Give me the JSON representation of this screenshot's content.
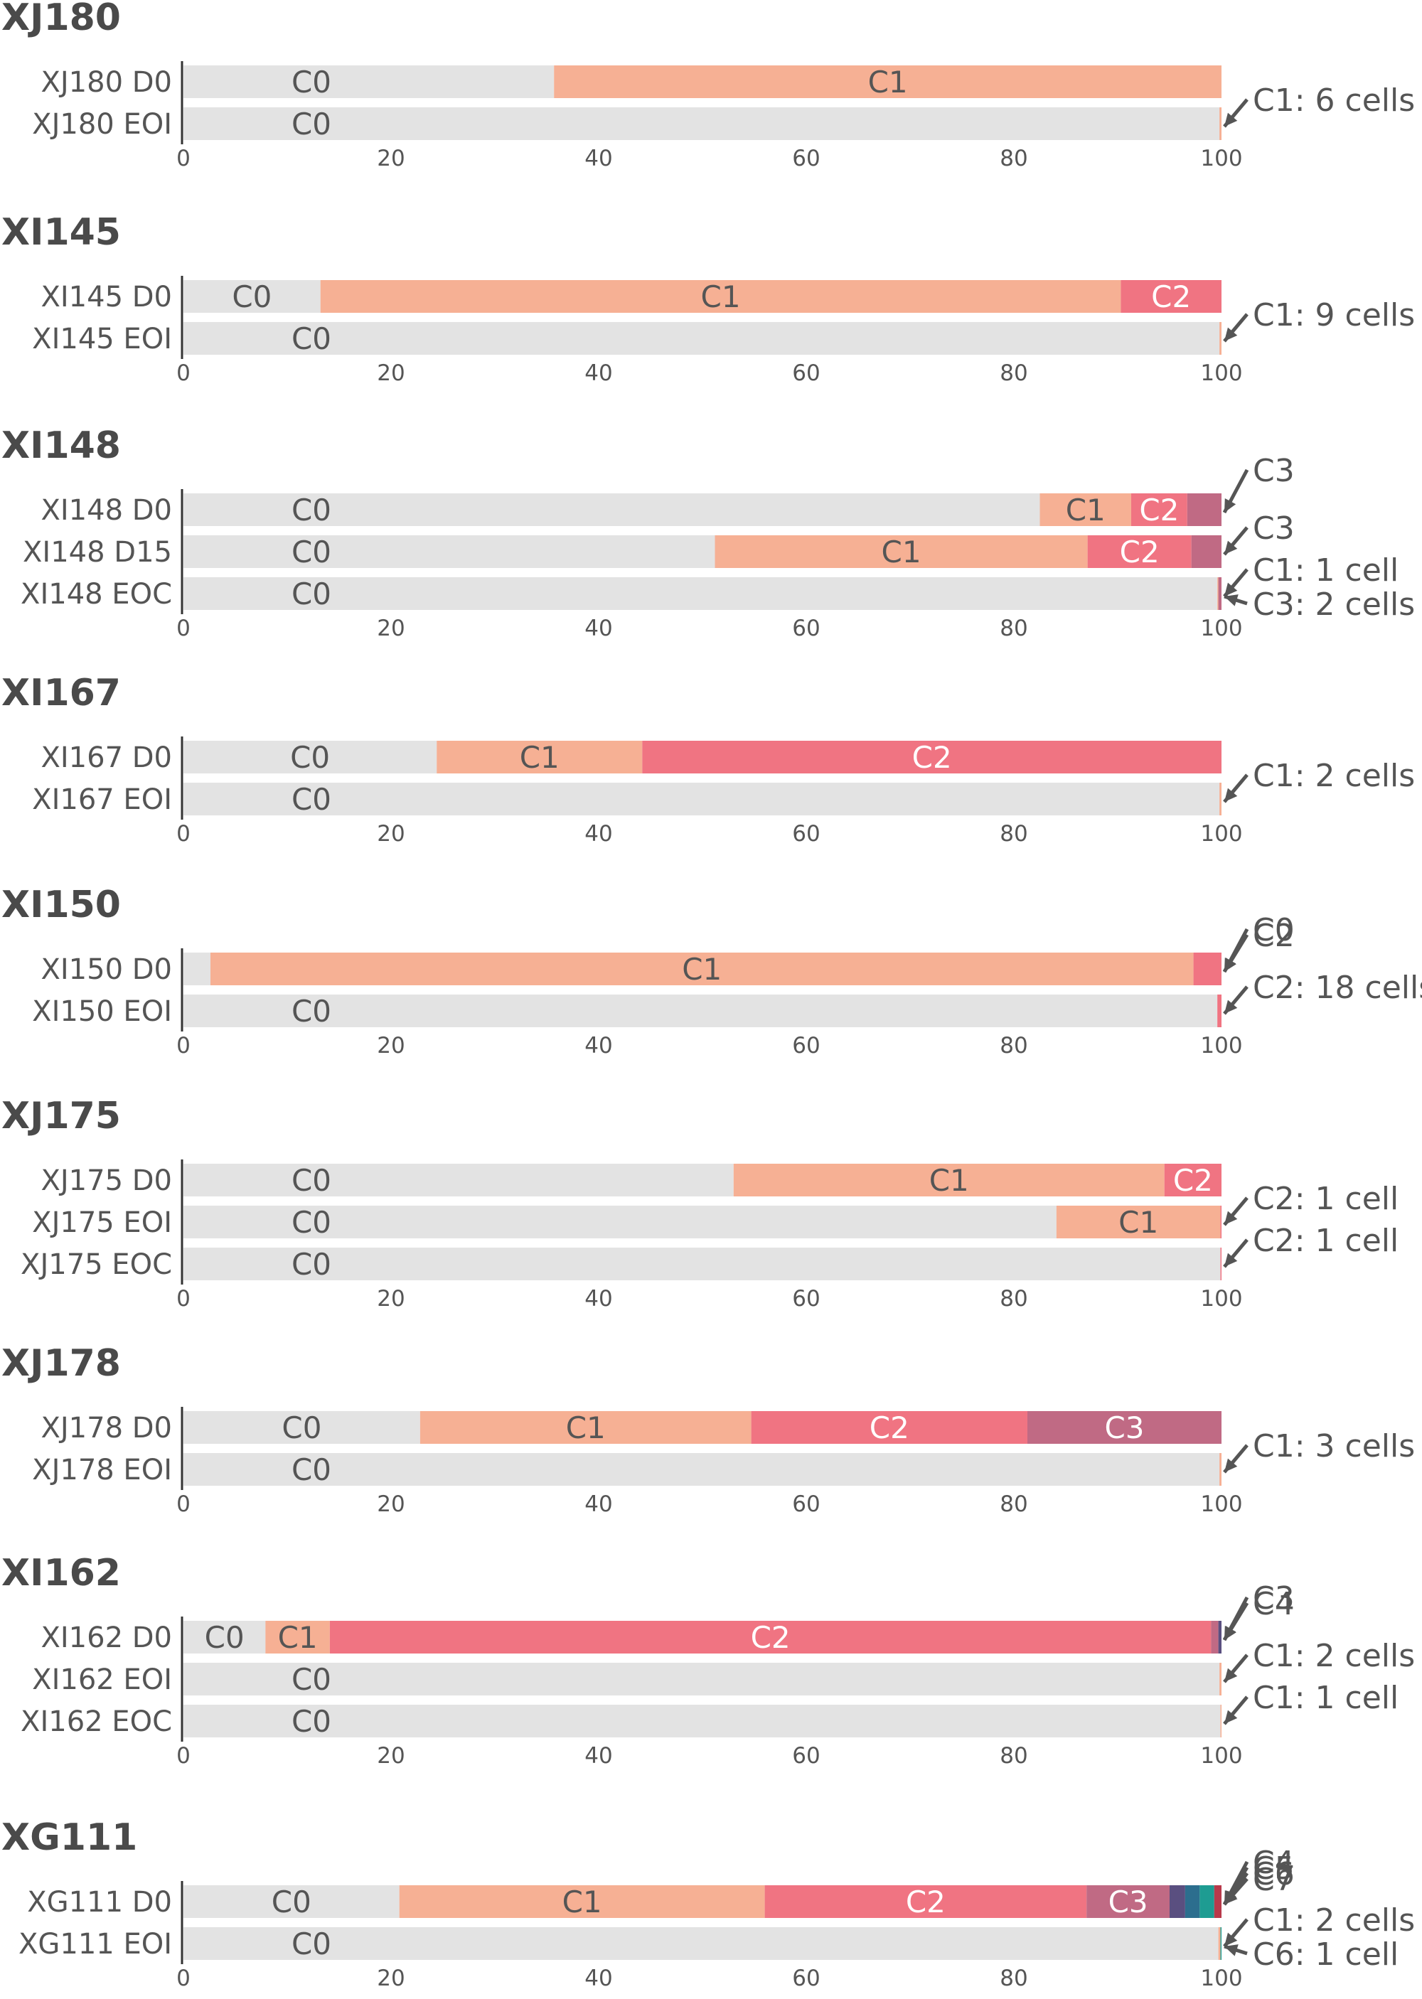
{
  "colors": {
    "C0": "#e3e3e3",
    "C1": "#f6b094",
    "C2": "#f07482",
    "C3": "#c06a84",
    "C4": "#5a4f80",
    "C5": "#2c6e8e",
    "C6": "#1e9c92",
    "C7": "#b8394a"
  },
  "chart_data": {
    "type": "bar",
    "orientation": "horizontal-stacked",
    "x_range": [
      0,
      100
    ],
    "x_ticks": [
      "0",
      "20",
      "40",
      "60",
      "80",
      "100"
    ],
    "panels": [
      {
        "title": "XJ180",
        "rows": [
          {
            "label": "XJ180 D0",
            "segments": [
              {
                "name": "C0",
                "value": 35.7,
                "show": true
              },
              {
                "name": "C1",
                "value": 64.3,
                "show": true
              }
            ]
          },
          {
            "label": "XJ180 EOI",
            "segments": [
              {
                "name": "C0",
                "value": 99.8,
                "show": true
              },
              {
                "name": "C1",
                "value": 0.2,
                "show": false
              }
            ]
          }
        ],
        "annotations": [
          {
            "text": "C1: 6 cells",
            "row": 1
          }
        ]
      },
      {
        "title": "XI145",
        "rows": [
          {
            "label": "XI145 D0",
            "segments": [
              {
                "name": "C0",
                "value": 13.2,
                "show": true
              },
              {
                "name": "C1",
                "value": 77.1,
                "show": true
              },
              {
                "name": "C2",
                "value": 9.7,
                "show": true
              }
            ]
          },
          {
            "label": "XI145 EOI",
            "segments": [
              {
                "name": "C0",
                "value": 99.8,
                "show": true
              },
              {
                "name": "C1",
                "value": 0.2,
                "show": false
              }
            ]
          }
        ],
        "annotations": [
          {
            "text": "C1: 9 cells",
            "row": 1
          }
        ]
      },
      {
        "title": "XI148",
        "rows": [
          {
            "label": "XI148 D0",
            "segments": [
              {
                "name": "C0",
                "value": 82.5,
                "show": true
              },
              {
                "name": "C1",
                "value": 8.8,
                "show": true
              },
              {
                "name": "C2",
                "value": 5.4,
                "show": true
              },
              {
                "name": "C3",
                "value": 3.3,
                "show": false
              }
            ]
          },
          {
            "label": "XI148 D15",
            "segments": [
              {
                "name": "C0",
                "value": 51.2,
                "show": true
              },
              {
                "name": "C1",
                "value": 35.9,
                "show": true
              },
              {
                "name": "C2",
                "value": 10.0,
                "show": true
              },
              {
                "name": "C3",
                "value": 2.9,
                "show": false
              }
            ]
          },
          {
            "label": "XI148 EOC",
            "segments": [
              {
                "name": "C0",
                "value": 99.6,
                "show": true
              },
              {
                "name": "C1",
                "value": 0.1,
                "show": false
              },
              {
                "name": "C3",
                "value": 0.3,
                "show": false
              }
            ]
          }
        ],
        "annotations": [
          {
            "text": "C3",
            "row": 0
          },
          {
            "text": "C3",
            "row": 1
          },
          {
            "text": "C1: 1 cell",
            "row": 2
          },
          {
            "text": "C3: 2 cells",
            "row": 2
          }
        ]
      },
      {
        "title": "XI167",
        "rows": [
          {
            "label": "XI167 D0",
            "segments": [
              {
                "name": "C0",
                "value": 24.4,
                "show": true
              },
              {
                "name": "C1",
                "value": 19.8,
                "show": true
              },
              {
                "name": "C2",
                "value": 55.8,
                "show": true
              }
            ]
          },
          {
            "label": "XI167 EOI",
            "segments": [
              {
                "name": "C0",
                "value": 99.8,
                "show": true
              },
              {
                "name": "C1",
                "value": 0.2,
                "show": false
              }
            ]
          }
        ],
        "annotations": [
          {
            "text": "C1: 2 cells",
            "row": 1
          }
        ]
      },
      {
        "title": "XI150",
        "rows": [
          {
            "label": "XI150 D0",
            "segments": [
              {
                "name": "C0",
                "value": 2.6,
                "show": false
              },
              {
                "name": "C1",
                "value": 94.7,
                "show": true
              },
              {
                "name": "C2",
                "value": 2.7,
                "show": false
              }
            ]
          },
          {
            "label": "XI150 EOI",
            "segments": [
              {
                "name": "C0",
                "value": 99.6,
                "show": true
              },
              {
                "name": "C2",
                "value": 0.4,
                "show": false
              }
            ]
          }
        ],
        "annotations": [
          {
            "text": "C0",
            "row": 0
          },
          {
            "text": "C2",
            "row": 0
          },
          {
            "text": "C2: 18 cells",
            "row": 1
          }
        ]
      },
      {
        "title": "XJ175",
        "rows": [
          {
            "label": "XJ175 D0",
            "segments": [
              {
                "name": "C0",
                "value": 53.0,
                "show": true
              },
              {
                "name": "C1",
                "value": 41.5,
                "show": true
              },
              {
                "name": "C2",
                "value": 5.5,
                "show": true
              }
            ]
          },
          {
            "label": "XJ175 EOI",
            "segments": [
              {
                "name": "C0",
                "value": 84.1,
                "show": true
              },
              {
                "name": "C1",
                "value": 15.8,
                "show": true
              },
              {
                "name": "C2",
                "value": 0.1,
                "show": false
              }
            ]
          },
          {
            "label": "XJ175 EOC",
            "segments": [
              {
                "name": "C0",
                "value": 99.9,
                "show": true
              },
              {
                "name": "C2",
                "value": 0.1,
                "show": false
              }
            ]
          }
        ],
        "annotations": [
          {
            "text": "C2: 1 cell",
            "row": 1
          },
          {
            "text": "C2: 1 cell",
            "row": 2
          }
        ]
      },
      {
        "title": "XJ178",
        "rows": [
          {
            "label": "XJ178 D0",
            "segments": [
              {
                "name": "C0",
                "value": 22.8,
                "show": true
              },
              {
                "name": "C1",
                "value": 31.9,
                "show": true
              },
              {
                "name": "C2",
                "value": 26.6,
                "show": true
              },
              {
                "name": "C3",
                "value": 18.7,
                "show": true
              }
            ]
          },
          {
            "label": "XJ178 EOI",
            "segments": [
              {
                "name": "C0",
                "value": 99.8,
                "show": true
              },
              {
                "name": "C1",
                "value": 0.2,
                "show": false
              }
            ]
          }
        ],
        "annotations": [
          {
            "text": "C1: 3 cells",
            "row": 1
          }
        ]
      },
      {
        "title": "XI162",
        "rows": [
          {
            "label": "XI162 D0",
            "segments": [
              {
                "name": "C0",
                "value": 7.9,
                "show": true
              },
              {
                "name": "C1",
                "value": 6.2,
                "show": true
              },
              {
                "name": "C2",
                "value": 84.9,
                "show": true
              },
              {
                "name": "C3",
                "value": 0.7,
                "show": false
              },
              {
                "name": "C4",
                "value": 0.3,
                "show": false
              }
            ]
          },
          {
            "label": "XI162 EOI",
            "segments": [
              {
                "name": "C0",
                "value": 99.8,
                "show": true
              },
              {
                "name": "C1",
                "value": 0.2,
                "show": false
              }
            ]
          },
          {
            "label": "XI162 EOC",
            "segments": [
              {
                "name": "C0",
                "value": 99.9,
                "show": true
              },
              {
                "name": "C1",
                "value": 0.1,
                "show": false
              }
            ]
          }
        ],
        "annotations": [
          {
            "text": "C3",
            "row": 0
          },
          {
            "text": "C4",
            "row": 0
          },
          {
            "text": "C1: 2 cells",
            "row": 1
          },
          {
            "text": "C1: 1 cell",
            "row": 2
          }
        ]
      },
      {
        "title": "XG111",
        "rows": [
          {
            "label": "XG111 D0",
            "segments": [
              {
                "name": "C0",
                "value": 20.8,
                "show": true
              },
              {
                "name": "C1",
                "value": 35.2,
                "show": true
              },
              {
                "name": "C2",
                "value": 31.0,
                "show": true
              },
              {
                "name": "C3",
                "value": 8.0,
                "show": true
              },
              {
                "name": "C4",
                "value": 1.5,
                "show": false
              },
              {
                "name": "C5",
                "value": 1.4,
                "show": false
              },
              {
                "name": "C6",
                "value": 1.4,
                "show": false
              },
              {
                "name": "C7",
                "value": 0.7,
                "show": false
              }
            ]
          },
          {
            "label": "XG111 EOI",
            "segments": [
              {
                "name": "C0",
                "value": 99.7,
                "show": true
              },
              {
                "name": "C1",
                "value": 0.2,
                "show": false
              },
              {
                "name": "C6",
                "value": 0.1,
                "show": false
              }
            ]
          }
        ],
        "annotations": [
          {
            "text": "C4",
            "row": 0
          },
          {
            "text": "C5",
            "row": 0
          },
          {
            "text": "C6",
            "row": 0
          },
          {
            "text": "C7",
            "row": 0
          },
          {
            "text": "C1: 2 cells",
            "row": 1
          },
          {
            "text": "C6: 1 cell",
            "row": 1
          }
        ]
      }
    ]
  }
}
